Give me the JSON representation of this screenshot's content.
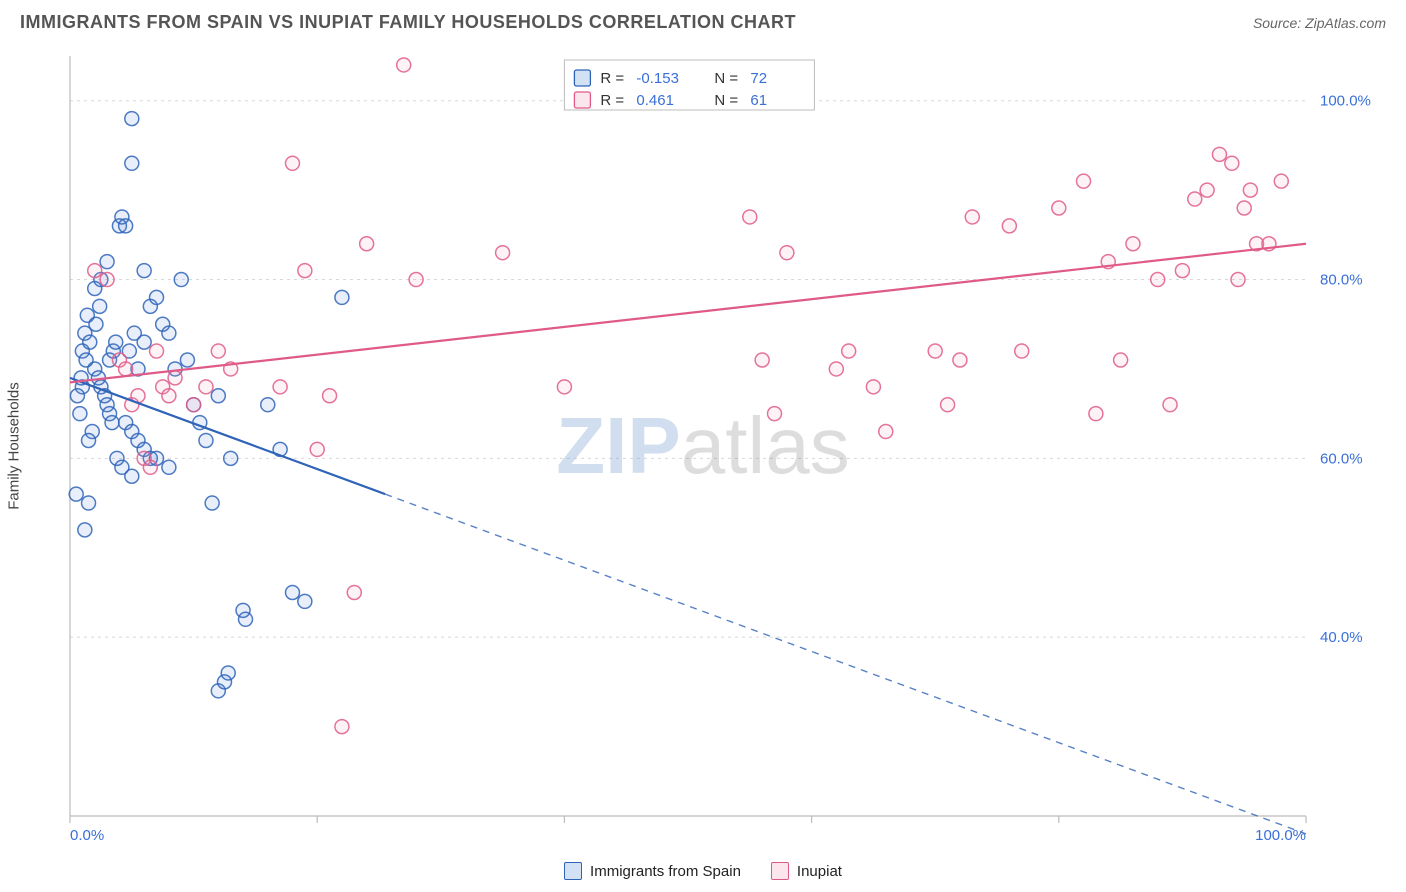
{
  "title": "IMMIGRANTS FROM SPAIN VS INUPIAT FAMILY HOUSEHOLDS CORRELATION CHART",
  "source": "Source: ZipAtlas.com",
  "ylabel": "Family Households",
  "watermark_zip": "ZIP",
  "watermark_atlas": "atlas",
  "chart": {
    "type": "scatter",
    "xlim": [
      0,
      100
    ],
    "ylim": [
      20,
      105
    ],
    "x_ticks": [
      0,
      20,
      40,
      60,
      80,
      100
    ],
    "x_tick_labels": [
      "0.0%",
      "",
      "",
      "",
      "",
      "100.0%"
    ],
    "y_ticks": [
      40,
      60,
      80,
      100
    ],
    "y_tick_labels": [
      "40.0%",
      "60.0%",
      "80.0%",
      "100.0%"
    ],
    "x_tick_label_color": "#3a6fd8",
    "y_tick_label_color": "#3a6fd8",
    "tick_fontsize": 15,
    "grid_color": "#d8d8d8",
    "grid_dash": "3,4",
    "axis_color": "#bcbcbc",
    "background_color": "#ffffff",
    "marker_radius": 7,
    "marker_stroke_width": 1.5,
    "marker_fill_opacity": 0.13,
    "line_width": 2.2
  },
  "series": [
    {
      "key": "spain",
      "label": "Immigrants from Spain",
      "color": "#4f86d9",
      "stroke": "#2e63b8",
      "R": "-0.153",
      "N": "72",
      "trend": {
        "x1": 0,
        "y1": 69,
        "x2": 25.5,
        "y2": 56,
        "x2_ext": 100,
        "y2_ext": 18
      },
      "points": [
        [
          1.5,
          55
        ],
        [
          1.2,
          52
        ],
        [
          0.5,
          56
        ],
        [
          2,
          79
        ],
        [
          2.5,
          80
        ],
        [
          3,
          82
        ],
        [
          3.2,
          71
        ],
        [
          3.5,
          72
        ],
        [
          3.7,
          73
        ],
        [
          4,
          86
        ],
        [
          4.2,
          87
        ],
        [
          5,
          98
        ],
        [
          5,
          93
        ],
        [
          4.5,
          86
        ],
        [
          6,
          81
        ],
        [
          6.5,
          77
        ],
        [
          7,
          78
        ],
        [
          7.5,
          75
        ],
        [
          2,
          70
        ],
        [
          2.3,
          69
        ],
        [
          2.5,
          68
        ],
        [
          2.8,
          67
        ],
        [
          3,
          66
        ],
        [
          3.2,
          65
        ],
        [
          3.4,
          64
        ],
        [
          1.8,
          63
        ],
        [
          1.5,
          62
        ],
        [
          4.5,
          64
        ],
        [
          5,
          63
        ],
        [
          5.5,
          62
        ],
        [
          6,
          61
        ],
        [
          6.5,
          60
        ],
        [
          7,
          60
        ],
        [
          1,
          72
        ],
        [
          1.2,
          74
        ],
        [
          1.4,
          76
        ],
        [
          8,
          59
        ],
        [
          8.5,
          70
        ],
        [
          9,
          80
        ],
        [
          10,
          66
        ],
        [
          10.5,
          64
        ],
        [
          11,
          62
        ],
        [
          11.5,
          55
        ],
        [
          12,
          67
        ],
        [
          13,
          60
        ],
        [
          14,
          43
        ],
        [
          14.2,
          42
        ],
        [
          12,
          34
        ],
        [
          12.5,
          35
        ],
        [
          12.8,
          36
        ],
        [
          18,
          45
        ],
        [
          19,
          44
        ],
        [
          22,
          78
        ],
        [
          16,
          66
        ],
        [
          17,
          61
        ],
        [
          9.5,
          71
        ],
        [
          8,
          74
        ],
        [
          3.8,
          60
        ],
        [
          4.2,
          59
        ],
        [
          5,
          58
        ],
        [
          5.5,
          70
        ],
        [
          6,
          73
        ],
        [
          1,
          68
        ],
        [
          1.3,
          71
        ],
        [
          1.6,
          73
        ],
        [
          2.1,
          75
        ],
        [
          2.4,
          77
        ],
        [
          0.8,
          65
        ],
        [
          0.6,
          67
        ],
        [
          0.9,
          69
        ],
        [
          4.8,
          72
        ],
        [
          5.2,
          74
        ]
      ]
    },
    {
      "key": "inupiat",
      "label": "Inupiat",
      "color": "#f29bb7",
      "stroke": "#e05a88",
      "R": "0.461",
      "N": "61",
      "trend": {
        "x1": 0,
        "y1": 68.5,
        "x2": 100,
        "y2": 84,
        "x2_ext": 100,
        "y2_ext": 84
      },
      "points": [
        [
          2,
          81
        ],
        [
          3,
          80
        ],
        [
          4,
          71
        ],
        [
          4.5,
          70
        ],
        [
          5,
          66
        ],
        [
          5.5,
          67
        ],
        [
          6,
          60
        ],
        [
          6.5,
          59
        ],
        [
          7,
          72
        ],
        [
          7.5,
          68
        ],
        [
          8,
          67
        ],
        [
          8.5,
          69
        ],
        [
          10,
          66
        ],
        [
          11,
          68
        ],
        [
          12,
          72
        ],
        [
          13,
          70
        ],
        [
          18,
          93
        ],
        [
          19,
          81
        ],
        [
          20,
          61
        ],
        [
          17,
          68
        ],
        [
          24,
          84
        ],
        [
          22,
          30
        ],
        [
          23,
          45
        ],
        [
          21,
          67
        ],
        [
          35,
          83
        ],
        [
          40,
          68
        ],
        [
          27,
          104
        ],
        [
          28,
          80
        ],
        [
          55,
          87
        ],
        [
          56,
          71
        ],
        [
          57,
          65
        ],
        [
          58,
          83
        ],
        [
          62,
          70
        ],
        [
          63,
          72
        ],
        [
          65,
          68
        ],
        [
          66,
          63
        ],
        [
          70,
          72
        ],
        [
          71,
          66
        ],
        [
          72,
          71
        ],
        [
          73,
          87
        ],
        [
          76,
          86
        ],
        [
          77,
          72
        ],
        [
          80,
          88
        ],
        [
          82,
          91
        ],
        [
          83,
          65
        ],
        [
          85,
          71
        ],
        [
          86,
          84
        ],
        [
          88,
          80
        ],
        [
          90,
          81
        ],
        [
          91,
          89
        ],
        [
          92,
          90
        ],
        [
          93,
          94
        ],
        [
          94,
          93
        ],
        [
          95,
          88
        ],
        [
          95.5,
          90
        ],
        [
          96,
          84
        ],
        [
          97,
          84
        ],
        [
          98,
          91
        ],
        [
          94.5,
          80
        ],
        [
          89,
          66
        ],
        [
          84,
          82
        ]
      ]
    }
  ],
  "top_legend": {
    "rows": [
      {
        "swatch_series": "spain",
        "R_label": "R =",
        "R_value": "-0.153",
        "N_label": "N =",
        "N_value": "72"
      },
      {
        "swatch_series": "inupiat",
        "R_label": "R =",
        "R_value": "0.461",
        "N_label": "N =",
        "N_value": "61"
      }
    ],
    "box_border": "#bcbcbc",
    "box_bg": "#ffffff"
  }
}
